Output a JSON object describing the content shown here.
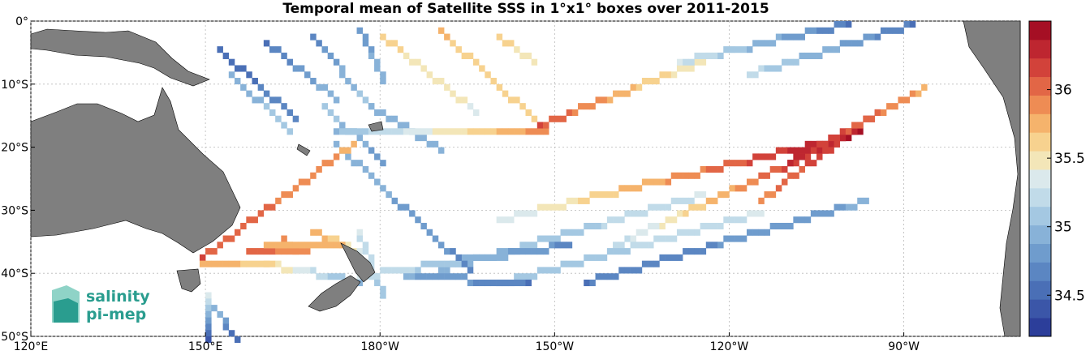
{
  "chart_data": {
    "type": "heatmap",
    "title": "Temporal mean of Satellite SSS in 1°x1° boxes over 2011-2015",
    "xlabel": "",
    "ylabel": "",
    "x_ticks": [
      "120°E",
      "150°E",
      "180°W",
      "150°W",
      "120°W",
      "90°W"
    ],
    "y_ticks": [
      "0°",
      "10°S",
      "20°S",
      "30°S",
      "40°S",
      "50°S"
    ],
    "xlim": [
      120,
      290
    ],
    "ylim": [
      -50,
      0
    ],
    "grid": true,
    "colorbar": {
      "range": [
        34.2,
        36.5
      ],
      "ticks": [
        "34.5",
        "35",
        "35.5",
        "36"
      ],
      "tick_values": [
        34.5,
        35.0,
        35.5,
        36.0
      ],
      "colors": [
        "#2c3e9a",
        "#3b56a8",
        "#4a6fb6",
        "#5b86c2",
        "#6f9ccd",
        "#88b2d8",
        "#a4c8e2",
        "#c1dbe9",
        "#dbe9ec",
        "#f3e6b8",
        "#f7d28f",
        "#f5b36c",
        "#ee8c54",
        "#e26646",
        "#d2423a",
        "#be2630",
        "#a50f24"
      ]
    },
    "tracks": [
      {
        "lon": [
          152,
          165
        ],
        "lat": [
          -4,
          -15
        ],
        "values": [
          34.5,
          34.7
        ]
      },
      {
        "lon": [
          160,
          172
        ],
        "lat": [
          -3,
          -12
        ],
        "values": [
          34.6,
          35.0
        ]
      },
      {
        "lon": [
          168,
          178
        ],
        "lat": [
          -2,
          -13
        ],
        "values": [
          34.7,
          35.1
        ]
      },
      {
        "lon": [
          176,
          180
        ],
        "lat": [
          -1,
          -9
        ],
        "values": [
          34.8,
          35.0
        ]
      },
      {
        "lon": [
          154,
          164
        ],
        "lat": [
          -8,
          -17
        ],
        "values": [
          34.9,
          35.1
        ]
      },
      {
        "lon": [
          170,
          180
        ],
        "lat": [
          -13,
          -22
        ],
        "values": [
          35.1,
          34.8
        ]
      },
      {
        "lon": [
          178,
          190
        ],
        "lat": [
          -13,
          -20
        ],
        "values": [
          34.9,
          35.0
        ]
      },
      {
        "lon": [
          172,
          208
        ],
        "lat": [
          -17,
          -17
        ],
        "values": [
          35.0,
          35.9
        ]
      },
      {
        "lon": [
          180,
          196
        ],
        "lat": [
          -2,
          -14
        ],
        "values": [
          35.6,
          35.4
        ]
      },
      {
        "lon": [
          190,
          207
        ],
        "lat": [
          -1,
          -16
        ],
        "values": [
          35.7,
          35.6
        ]
      },
      {
        "lon": [
          200,
          206
        ],
        "lat": [
          -2,
          -6
        ],
        "values": [
          35.6,
          35.5
        ]
      },
      {
        "lon": [
          207,
          240
        ],
        "lat": [
          -16,
          -4
        ],
        "values": [
          36.1,
          35.3
        ]
      },
      {
        "lon": [
          231,
          260
        ],
        "lat": [
          -6,
          0
        ],
        "values": [
          35.3,
          34.6
        ]
      },
      {
        "lon": [
          243,
          271
        ],
        "lat": [
          -8,
          0
        ],
        "values": [
          35.2,
          34.6
        ]
      },
      {
        "lon": [
          200,
          259
        ],
        "lat": [
          -31,
          -18
        ],
        "values": [
          35.3,
          36.4
        ]
      },
      {
        "lon": [
          220,
          262
        ],
        "lat": [
          -35,
          -17
        ],
        "values": [
          35.2,
          36.5
        ]
      },
      {
        "lon": [
          245,
          265
        ],
        "lat": [
          -28,
          -14
        ],
        "values": [
          35.9,
          36.4
        ]
      },
      {
        "lon": [
          250,
          273
        ],
        "lat": [
          -22,
          -10
        ],
        "values": [
          36.3,
          35.8
        ]
      },
      {
        "lon": [
          190,
          235
        ],
        "lat": [
          -39,
          -27
        ],
        "values": [
          34.9,
          35.3
        ]
      },
      {
        "lon": [
          200,
          245
        ],
        "lat": [
          -41,
          -30
        ],
        "values": [
          35.0,
          35.3
        ]
      },
      {
        "lon": [
          215,
          263
        ],
        "lat": [
          -41,
          -28
        ],
        "values": [
          34.6,
          34.9
        ]
      },
      {
        "lon": [
          176,
          212
        ],
        "lat": [
          -40,
          -35
        ],
        "values": [
          35.3,
          34.7
        ]
      },
      {
        "lon": [
          184,
          205
        ],
        "lat": [
          -40,
          -41
        ],
        "values": [
          34.9,
          34.6
        ]
      },
      {
        "lon": [
          172,
          195
        ],
        "lat": [
          -19,
          -39
        ],
        "values": [
          35.0,
          34.7
        ]
      },
      {
        "lon": [
          149,
          175
        ],
        "lat": [
          -37,
          -19
        ],
        "values": [
          36.1,
          35.8
        ]
      },
      {
        "lon": [
          163,
          165
        ],
        "lat": [
          -34,
          -36
        ],
        "values": [
          35.9,
          35.7
        ]
      },
      {
        "lon": [
          168,
          176
        ],
        "lat": [
          -33,
          -36
        ],
        "values": [
          35.8,
          35.4
        ]
      },
      {
        "lon": [
          149,
          160
        ],
        "lat": [
          -38,
          -38
        ],
        "values": [
          35.8,
          35.6
        ]
      },
      {
        "lon": [
          160,
          176
        ],
        "lat": [
          -38,
          -41
        ],
        "values": [
          35.6,
          34.9
        ]
      },
      {
        "lon": [
          157,
          167
        ],
        "lat": [
          -36,
          -36
        ],
        "values": [
          36.0,
          35.9
        ]
      },
      {
        "lon": [
          160,
          173
        ],
        "lat": [
          -35,
          -35
        ],
        "values": [
          35.8,
          35.7
        ]
      },
      {
        "lon": [
          150,
          150
        ],
        "lat": [
          -43,
          -50
        ],
        "values": [
          35.3,
          34.4
        ]
      },
      {
        "lon": [
          151,
          155
        ],
        "lat": [
          -45,
          -50
        ],
        "values": [
          35.0,
          34.5
        ]
      },
      {
        "lon": [
          176,
          180
        ],
        "lat": [
          -33,
          -43
        ],
        "values": [
          35.3,
          35.1
        ]
      }
    ]
  },
  "logo": {
    "line1": "salinity",
    "line2": "pi-mep"
  },
  "colors": {
    "land": "#7f7f7f",
    "background": "#ffffff",
    "grid": "#b9b9b9",
    "logo": "#2a9d8f"
  }
}
